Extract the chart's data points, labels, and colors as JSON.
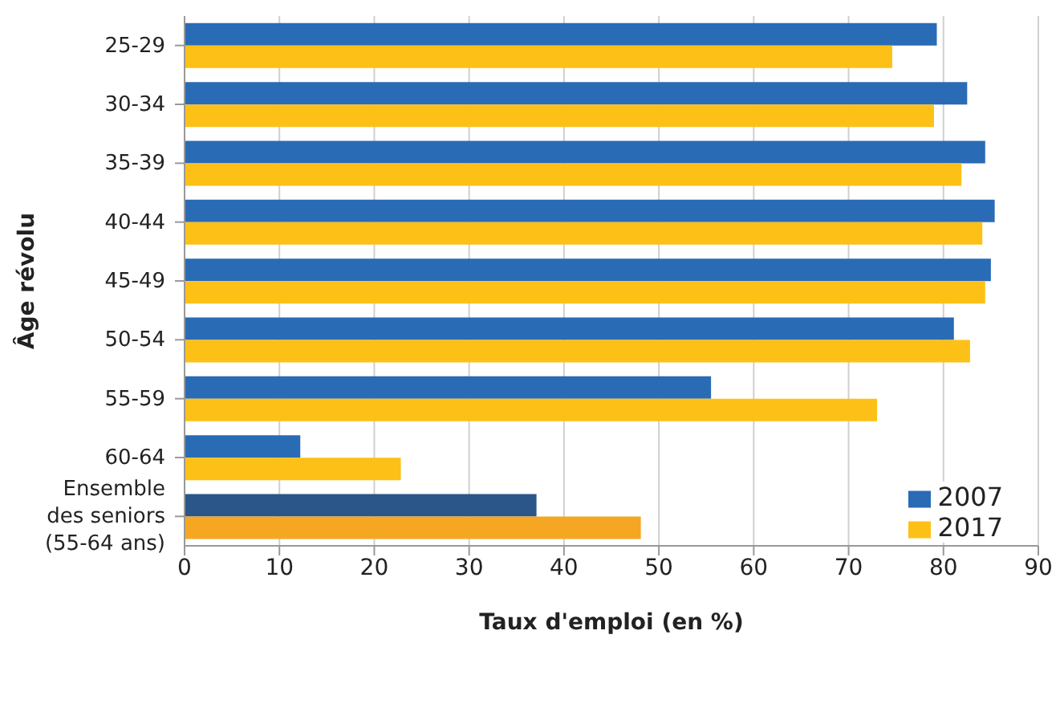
{
  "chart_data": {
    "type": "bar",
    "orientation": "horizontal",
    "xlabel": "Taux d'emploi (en %)",
    "ylabel": "Âge révolu",
    "categories": [
      "25-29",
      "30-34",
      "35-39",
      "40-44",
      "45-49",
      "50-54",
      "55-59",
      "60-64",
      "Ensemble des seniors (55-64 ans)"
    ],
    "series": [
      {
        "name": "2007",
        "color": "#2a6bb5",
        "colors": [
          "#2a6bb5",
          "#2a6bb5",
          "#2a6bb5",
          "#2a6bb5",
          "#2a6bb5",
          "#2a6bb5",
          "#2a6bb5",
          "#2a6bb5",
          "#2a5689"
        ],
        "values": [
          79.3,
          82.5,
          84.4,
          85.4,
          85.0,
          81.1,
          55.5,
          12.2,
          37.1
        ]
      },
      {
        "name": "2017",
        "color": "#fdc016",
        "colors": [
          "#fdc016",
          "#fdc016",
          "#fdc016",
          "#fdc016",
          "#fdc016",
          "#fdc016",
          "#fdc016",
          "#fdc016",
          "#f5a623"
        ],
        "values": [
          74.6,
          79.0,
          81.9,
          84.1,
          84.4,
          82.8,
          73.0,
          22.8,
          48.1
        ]
      }
    ],
    "xlim": [
      0,
      90
    ],
    "xticks": [
      0,
      10,
      20,
      30,
      40,
      50,
      60,
      70,
      80,
      90
    ],
    "grid": "x",
    "legend": "bottom right"
  }
}
